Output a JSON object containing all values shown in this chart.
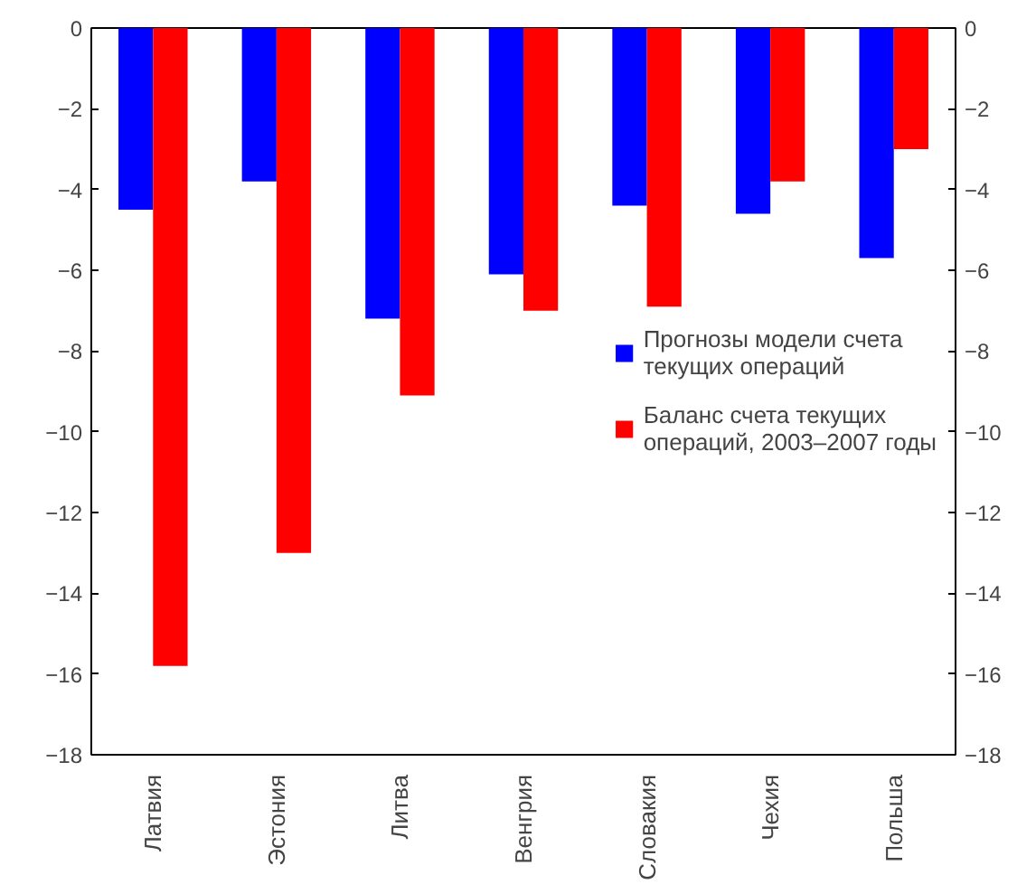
{
  "chart_data": {
    "type": "bar",
    "categories": [
      "Латвия",
      "Эстония",
      "Литва",
      "Венгрия",
      "Словакия",
      "Чехия",
      "Польша"
    ],
    "series": [
      {
        "name": "Прогнозы модели счета текущих операций",
        "color": "#0000ff",
        "values": [
          -4.5,
          -3.8,
          -7.2,
          -6.1,
          -4.4,
          -4.6,
          -5.7
        ]
      },
      {
        "name": "Баланс счета текущих операций, 2003–2007 годы",
        "color": "#ff0000",
        "values": [
          -15.8,
          -13.0,
          -9.1,
          -7.0,
          -6.9,
          -3.8,
          -3.0
        ]
      }
    ],
    "ylim": [
      -18,
      0
    ],
    "yticks": [
      -18,
      -16,
      -14,
      -12,
      -10,
      -8,
      -6,
      -4,
      -2,
      0
    ],
    "y2lim": [
      -18,
      0
    ],
    "y2ticks": [
      -18,
      -16,
      -14,
      -12,
      -10,
      -8,
      -6,
      -4,
      -2,
      0
    ],
    "grid": false,
    "legend": "right"
  }
}
